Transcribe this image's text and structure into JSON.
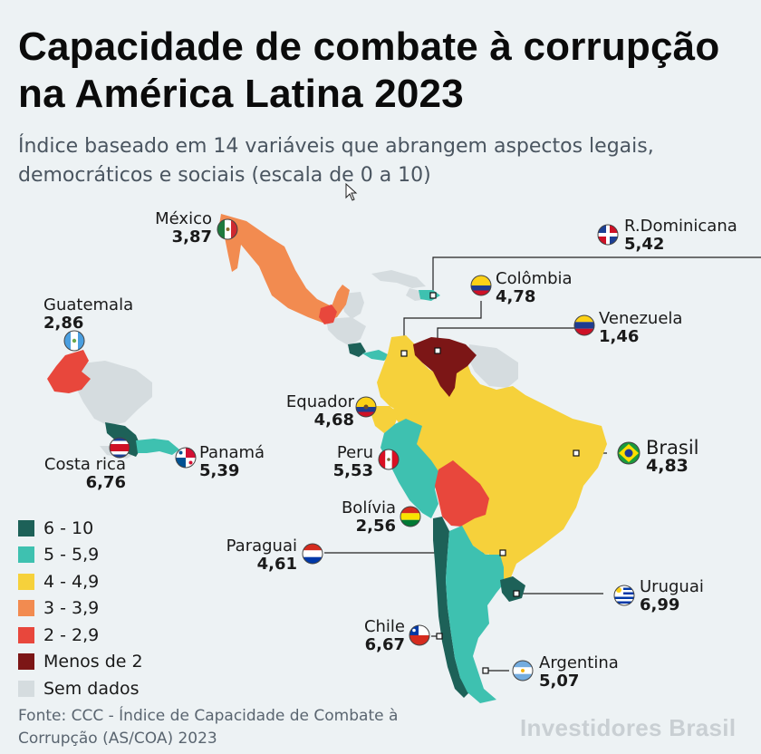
{
  "title": "Capacidade de combate à corrupção na América Latina 2023",
  "subtitle": "Índice baseado em 14 variáveis que abrangem aspectos legais, democráticos e sociais  (escala de 0 a 10)",
  "countries": {
    "mexico": {
      "name": "México",
      "value": "3,87",
      "color": "#f28b50"
    },
    "dominicana": {
      "name": "R.Dominicana",
      "value": "5,42",
      "color": "#3ec1b0"
    },
    "colombia": {
      "name": "Colômbia",
      "value": "4,78",
      "color": "#f6d13b"
    },
    "venezuela": {
      "name": "Venezuela",
      "value": "1,46",
      "color": "#7c1616"
    },
    "guatemala": {
      "name": "Guatemala",
      "value": "2,86",
      "color": "#e8473c"
    },
    "equador": {
      "name": "Equador",
      "value": "4,68",
      "color": "#f6d13b"
    },
    "peru": {
      "name": "Peru",
      "value": "5,53",
      "color": "#3ec1b0"
    },
    "costa_rica": {
      "name": "Costa rica",
      "value": "6,76",
      "color": "#1d6158"
    },
    "panama": {
      "name": "Panamá",
      "value": "5,39",
      "color": "#3ec1b0"
    },
    "brasil": {
      "name": "Brasil",
      "value": "4,83",
      "color": "#f6d13b"
    },
    "bolivia": {
      "name": "Bolívia",
      "value": "2,56",
      "color": "#e8473c"
    },
    "paraguai": {
      "name": "Paraguai",
      "value": "4,61",
      "color": "#f6d13b"
    },
    "uruguai": {
      "name": "Uruguai",
      "value": "6,99",
      "color": "#1d6158"
    },
    "chile": {
      "name": "Chile",
      "value": "6,67",
      "color": "#1d6158"
    },
    "argentina": {
      "name": "Argentina",
      "value": "5,07",
      "color": "#3ec1b0"
    }
  },
  "legend": [
    {
      "label": "6 - 10",
      "color": "#1d6158"
    },
    {
      "label": "5 - 5,9",
      "color": "#3ec1b0"
    },
    {
      "label": "4 - 4,9",
      "color": "#f6d13b"
    },
    {
      "label": "3 - 3,9",
      "color": "#f28b50"
    },
    {
      "label": "2 - 2,9",
      "color": "#e8473c"
    },
    {
      "label": "Menos de 2",
      "color": "#7c1616"
    },
    {
      "label": "Sem dados",
      "color": "#d5dcdf"
    }
  ],
  "no_data_color": "#d5dcdf",
  "source": "Fonte: CCC - Índice de Capacidade de Combate à Corrupção (AS/COA) 2023",
  "brand": "Investidores Brasil"
}
